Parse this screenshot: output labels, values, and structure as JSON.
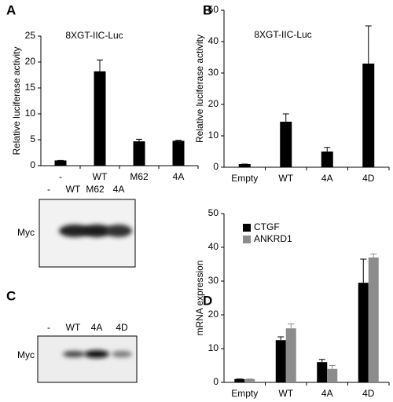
{
  "panels": [
    "A",
    "B",
    "C",
    "D"
  ],
  "chart_data": [
    {
      "type": "bar",
      "title": "8XGT-IIC-Luc",
      "ylabel": "Relative luciferase activity",
      "categories": [
        "-",
        "WT",
        "M62",
        "4A"
      ],
      "series": [
        {
          "color": "#000000",
          "values": [
            1,
            18.2,
            4.7,
            4.8
          ],
          "errors": [
            0,
            2.2,
            0.4,
            0.1
          ]
        }
      ],
      "ylim": [
        0,
        25
      ],
      "yticks": [
        0,
        5,
        10,
        15,
        20,
        25
      ]
    },
    {
      "type": "bar",
      "title": "8XGT-IIC-Luc",
      "ylabel": "Relative luciferase activity",
      "categories": [
        "Empty",
        "WT",
        "4A",
        "4D"
      ],
      "series": [
        {
          "color": "#000000",
          "values": [
            1,
            14.5,
            5,
            33
          ],
          "errors": [
            0,
            2.5,
            1.3,
            12
          ]
        }
      ],
      "ylim": [
        0,
        50
      ],
      "yticks": [
        0,
        10,
        20,
        30,
        40,
        50
      ]
    },
    {
      "type": "bar",
      "ylabel": "mRNA expression",
      "categories": [
        "Empty",
        "WT",
        "4A",
        "4D"
      ],
      "series": [
        {
          "name": "CTGF",
          "color": "#000000",
          "values": [
            1,
            12.5,
            6,
            29.5
          ],
          "errors": [
            0,
            1,
            0.8,
            7
          ]
        },
        {
          "name": "ANKRD1",
          "color": "#8c8c8c",
          "values": [
            1,
            16,
            4,
            37
          ],
          "errors": [
            0,
            1.3,
            1,
            1
          ]
        }
      ],
      "ylim": [
        0,
        50
      ],
      "yticks": [
        0,
        10,
        20,
        30,
        40,
        50
      ],
      "legend": "upper left"
    }
  ],
  "blots": [
    {
      "lanes": [
        "-",
        "WT",
        "M62",
        "4A"
      ],
      "row_label": "Myc"
    },
    {
      "lanes": [
        "-",
        "WT",
        "4A",
        "4D"
      ],
      "row_label": "Myc"
    }
  ]
}
